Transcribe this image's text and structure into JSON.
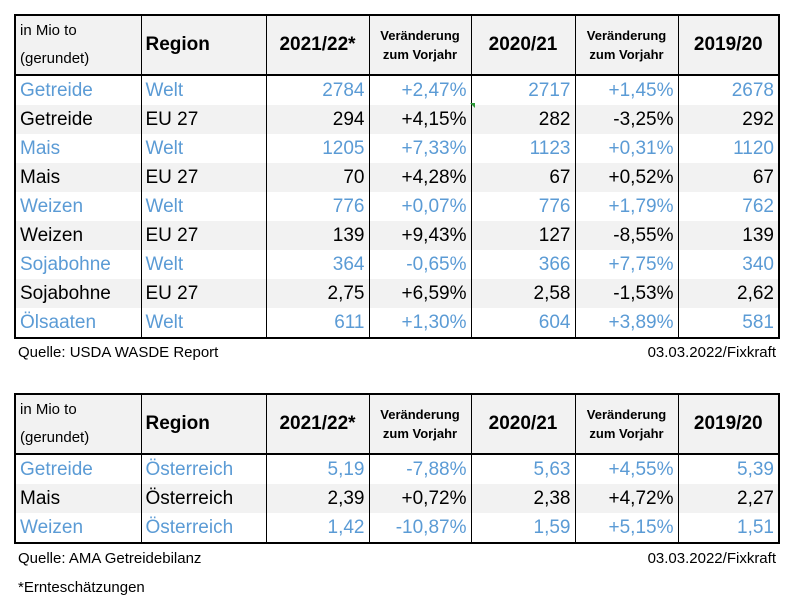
{
  "table1": {
    "header": {
      "unit": "in Mio to",
      "unit2": "(gerundet)",
      "region": "Region",
      "y1": "2021/22*",
      "chg1a": "Veränderung",
      "chg1b": "zum Vorjahr",
      "y2": "2020/21",
      "chg2a": "Veränderung",
      "chg2b": "zum Vorjahr",
      "y3": "2019/20"
    },
    "rows": [
      {
        "crop": "Getreide",
        "region": "Welt",
        "v1": "2784",
        "c1": "+2,47%",
        "v2": "2717",
        "c2": "+1,45%",
        "v3": "2678"
      },
      {
        "crop": "Getreide",
        "region": "EU 27",
        "v1": "294",
        "c1": "+4,15%",
        "v2": "282",
        "c2": "-3,25%",
        "v3": "292"
      },
      {
        "crop": "Mais",
        "region": "Welt",
        "v1": "1205",
        "c1": "+7,33%",
        "v2": "1123",
        "c2": "+0,31%",
        "v3": "1120"
      },
      {
        "crop": "Mais",
        "region": "EU 27",
        "v1": "70",
        "c1": "+4,28%",
        "v2": "67",
        "c2": "+0,52%",
        "v3": "67"
      },
      {
        "crop": "Weizen",
        "region": "Welt",
        "v1": "776",
        "c1": "+0,07%",
        "v2": "776",
        "c2": "+1,79%",
        "v3": "762"
      },
      {
        "crop": "Weizen",
        "region": "EU 27",
        "v1": "139",
        "c1": "+9,43%",
        "v2": "127",
        "c2": "-8,55%",
        "v3": "139"
      },
      {
        "crop": "Sojabohne",
        "region": "Welt",
        "v1": "364",
        "c1": "-0,65%",
        "v2": "366",
        "c2": "+7,75%",
        "v3": "340"
      },
      {
        "crop": "Sojabohne",
        "region": "EU 27",
        "v1": "2,75",
        "c1": "+6,59%",
        "v2": "2,58",
        "c2": "-1,53%",
        "v3": "2,62"
      },
      {
        "crop": "Ölsaaten",
        "region": "Welt",
        "v1": "611",
        "c1": "+1,30%",
        "v2": "604",
        "c2": "+3,89%",
        "v3": "581"
      }
    ],
    "source": "Quelle: USDA WASDE Report",
    "date": "03.03.2022/Fixkraft"
  },
  "table2": {
    "header": {
      "unit": "in Mio to",
      "unit2": "(gerundet)",
      "region": "Region",
      "y1": "2021/22*",
      "chg1a": "Veränderung",
      "chg1b": "zum Vorjahr",
      "y2": "2020/21",
      "chg2a": "Veränderung",
      "chg2b": "zum Vorjahr",
      "y3": "2019/20"
    },
    "rows": [
      {
        "crop": "Getreide",
        "region": "Österreich",
        "v1": "5,19",
        "c1": "-7,88%",
        "v2": "5,63",
        "c2": "+4,55%",
        "v3": "5,39"
      },
      {
        "crop": "Mais",
        "region": "Österreich",
        "v1": "2,39",
        "c1": "+0,72%",
        "v2": "2,38",
        "c2": "+4,72%",
        "v3": "2,27"
      },
      {
        "crop": "Weizen",
        "region": "Österreich",
        "v1": "1,42",
        "c1": "-10,87%",
        "v2": "1,59",
        "c2": "+5,15%",
        "v3": "1,51"
      }
    ],
    "source": "Quelle: AMA Getreidebilanz",
    "date": "03.03.2022/Fixkraft"
  },
  "footnote": "*Ernteschätzungen",
  "colors": {
    "world_text": "#5b9bd5",
    "eu_text": "#000000",
    "header_bg": "#f2f2f2",
    "shaded_row_bg": "#f2f2f2",
    "comment_marker": "#2e9b3a"
  }
}
